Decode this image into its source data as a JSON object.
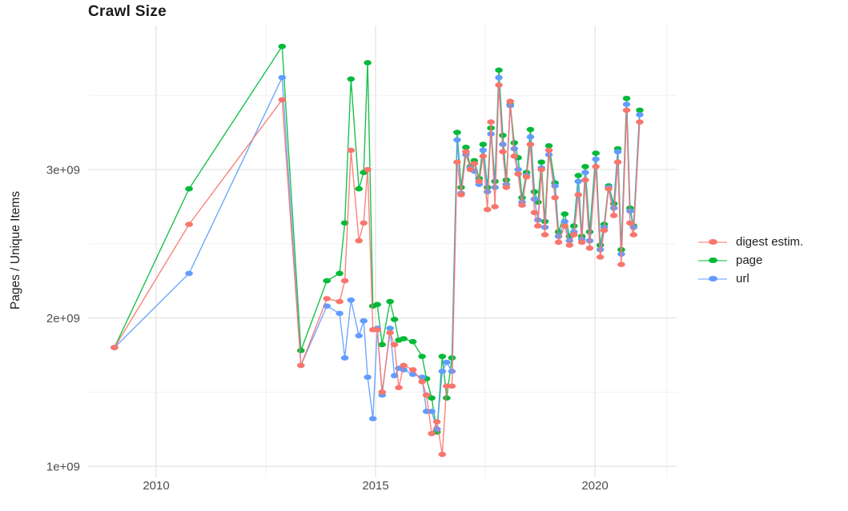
{
  "title": "Crawl Size",
  "y_axis_title": "Pages / Unique Items",
  "x_tick_labels": [
    "2010",
    "2015",
    "2020"
  ],
  "y_tick_labels": [
    "1e+09",
    "2e+09",
    "3e+09"
  ],
  "legend": {
    "items": [
      {
        "label": "digest estim.",
        "color": "#F8766D"
      },
      {
        "label": "page",
        "color": "#00BA38"
      },
      {
        "label": "url",
        "color": "#619CFF"
      }
    ]
  },
  "chart_data": {
    "type": "line",
    "title": "Crawl Size",
    "xlabel": "",
    "ylabel": "Pages / Unique Items",
    "x_unit": "year (decimal)",
    "y_unit": "pages / unique items (value ×1e9)",
    "xlim": [
      2008.45,
      2021.9
    ],
    "ylim_e9": [
      0.92,
      3.97
    ],
    "x_ticks": [
      2010,
      2015,
      2020
    ],
    "x_minor_ticks": [
      2012.5,
      2017.5
    ],
    "y_ticks_e9": [
      1,
      2,
      3
    ],
    "y_minor_ticks_e9": [
      1.5,
      2.5,
      3.5
    ],
    "grid": "major and minor light-gray gridlines on white, no axis lines",
    "legend_position": "right-middle",
    "marker": "ellipse-dot with connecting line",
    "x": [
      2009.05,
      2010.75,
      2012.87,
      2013.3,
      2013.89,
      2014.18,
      2014.3,
      2014.44,
      2014.62,
      2014.73,
      2014.82,
      2014.94,
      2015.04,
      2015.15,
      2015.33,
      2015.43,
      2015.53,
      2015.64,
      2015.85,
      2016.06,
      2016.16,
      2016.28,
      2016.4,
      2016.52,
      2016.62,
      2016.74,
      2016.86,
      2016.95,
      2017.06,
      2017.16,
      2017.25,
      2017.36,
      2017.45,
      2017.55,
      2017.63,
      2017.72,
      2017.81,
      2017.9,
      2017.98,
      2018.07,
      2018.16,
      2018.25,
      2018.34,
      2018.44,
      2018.53,
      2018.62,
      2018.7,
      2018.78,
      2018.86,
      2018.95,
      2019.09,
      2019.17,
      2019.31,
      2019.42,
      2019.52,
      2019.62,
      2019.7,
      2019.78,
      2019.88,
      2020.02,
      2020.12,
      2020.21,
      2020.31,
      2020.43,
      2020.52,
      2020.6,
      2020.72,
      2020.8,
      2020.88,
      2021.02
    ],
    "series": [
      {
        "name": "page",
        "color": "#00BA38",
        "values_e9": [
          1.8,
          2.87,
          3.83,
          1.78,
          2.25,
          2.3,
          2.64,
          3.61,
          2.87,
          2.98,
          3.72,
          2.08,
          2.09,
          1.82,
          2.11,
          1.99,
          1.85,
          1.86,
          1.84,
          1.74,
          1.59,
          1.46,
          1.23,
          1.74,
          1.46,
          1.73,
          3.25,
          2.88,
          3.15,
          3.02,
          3.06,
          2.94,
          3.17,
          2.88,
          3.28,
          2.92,
          3.67,
          3.23,
          2.93,
          3.44,
          3.18,
          3.08,
          2.81,
          2.98,
          3.27,
          2.85,
          2.78,
          3.05,
          2.65,
          3.16,
          2.91,
          2.58,
          2.7,
          2.55,
          2.62,
          2.96,
          2.55,
          3.02,
          2.58,
          3.11,
          2.49,
          2.63,
          2.89,
          2.77,
          3.14,
          2.46,
          3.48,
          2.74,
          2.62,
          3.4
        ]
      },
      {
        "name": "url",
        "color": "#619CFF",
        "values_e9": [
          1.8,
          2.3,
          3.62,
          1.68,
          2.08,
          2.03,
          1.73,
          2.12,
          1.88,
          1.98,
          1.6,
          1.32,
          1.93,
          1.48,
          1.93,
          1.61,
          1.66,
          1.65,
          1.62,
          1.6,
          1.37,
          1.37,
          1.25,
          1.64,
          1.7,
          1.64,
          3.2,
          2.84,
          3.1,
          3.01,
          2.99,
          2.9,
          3.13,
          2.85,
          3.24,
          2.88,
          3.62,
          3.17,
          2.9,
          3.43,
          3.14,
          3.0,
          2.78,
          2.96,
          3.22,
          2.8,
          2.66,
          3.01,
          2.61,
          3.1,
          2.89,
          2.55,
          2.65,
          2.52,
          2.58,
          2.92,
          2.53,
          2.98,
          2.52,
          3.07,
          2.46,
          2.61,
          2.88,
          2.74,
          3.12,
          2.43,
          3.44,
          2.72,
          2.61,
          3.37
        ]
      },
      {
        "name": "digest estim.",
        "color": "#F8766D",
        "values_e9": [
          1.8,
          2.63,
          3.47,
          1.68,
          2.13,
          2.11,
          2.25,
          3.13,
          2.52,
          2.64,
          3.0,
          1.92,
          1.92,
          1.5,
          1.9,
          1.82,
          1.53,
          1.68,
          1.65,
          1.57,
          1.48,
          1.22,
          1.3,
          1.08,
          1.54,
          1.54,
          3.05,
          2.83,
          3.12,
          3.0,
          3.04,
          2.92,
          3.09,
          2.73,
          3.32,
          2.75,
          3.57,
          3.12,
          2.88,
          3.46,
          3.09,
          2.97,
          2.76,
          2.95,
          3.17,
          2.71,
          2.62,
          3.0,
          2.56,
          3.13,
          2.81,
          2.51,
          2.62,
          2.49,
          2.56,
          2.83,
          2.51,
          2.93,
          2.47,
          3.02,
          2.41,
          2.59,
          2.87,
          2.69,
          3.05,
          2.36,
          3.4,
          2.64,
          2.56,
          3.32
        ]
      }
    ]
  }
}
